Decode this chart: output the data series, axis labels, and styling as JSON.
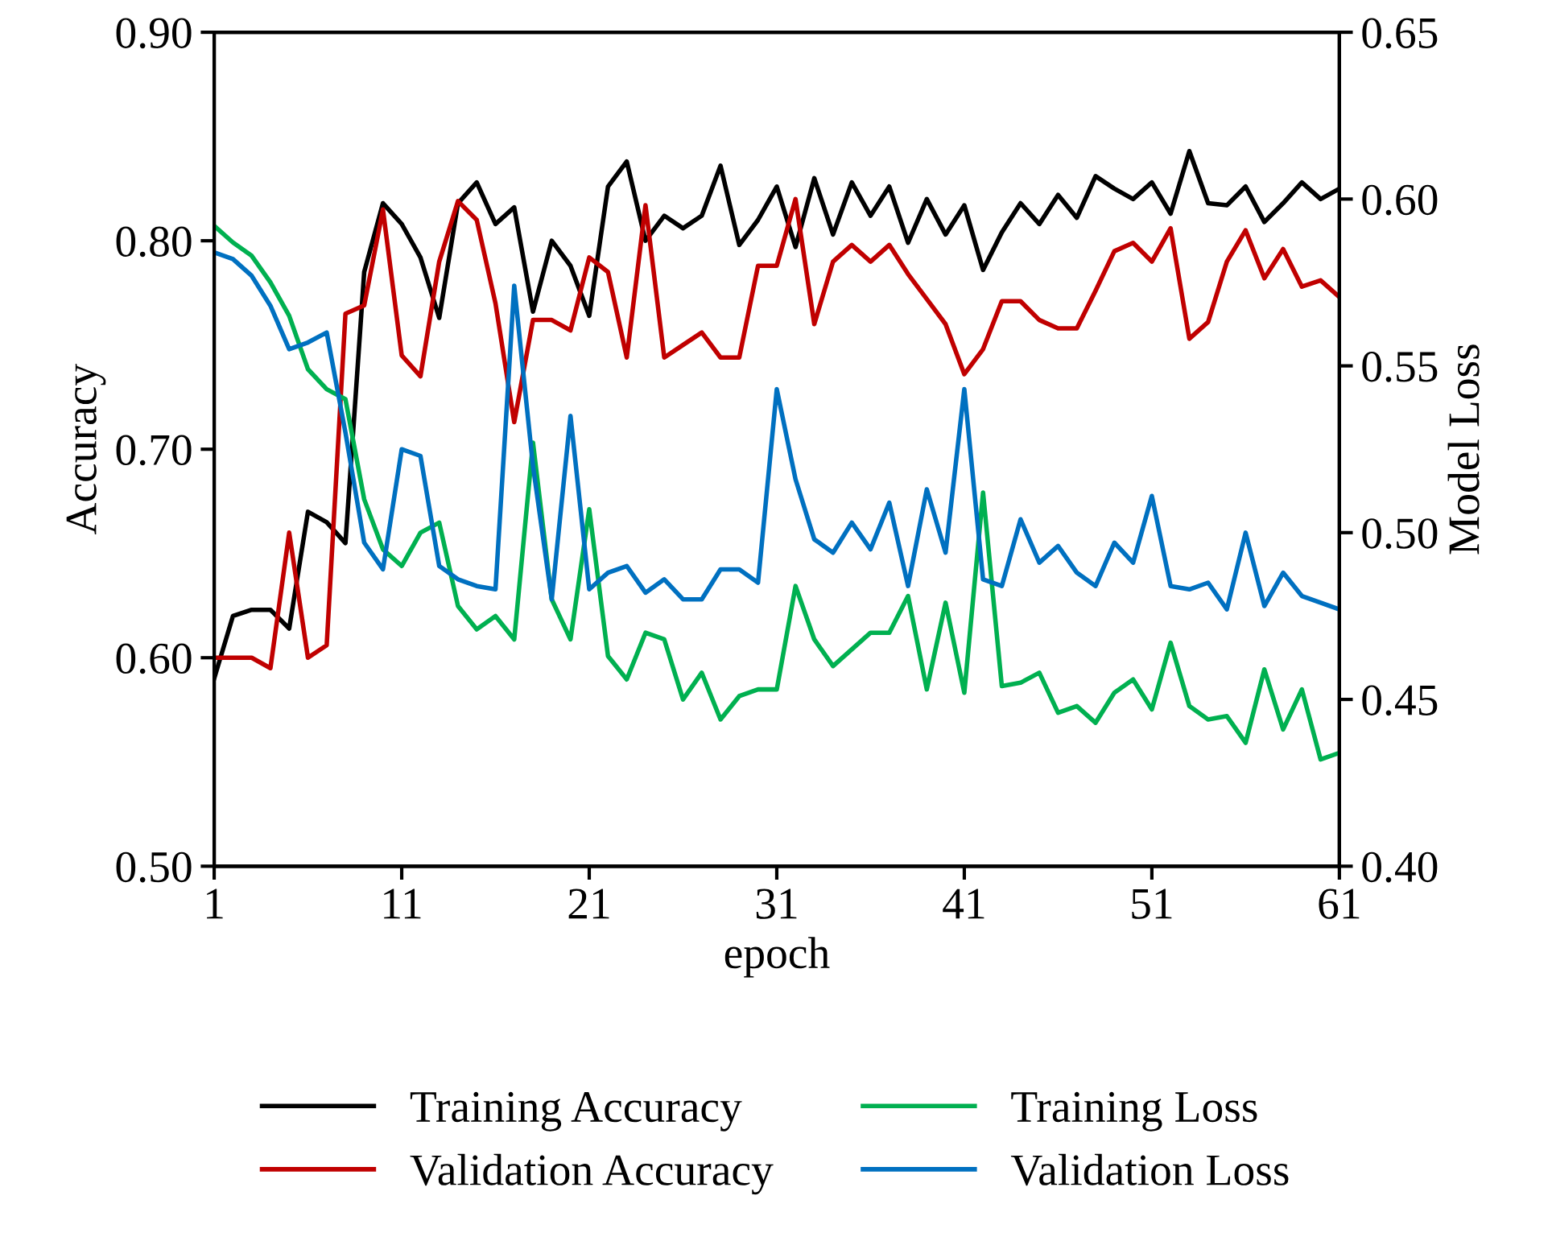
{
  "chart_data": {
    "type": "line",
    "xlabel": "epoch",
    "ylabel": "Accuracy",
    "y2label": "Model Loss",
    "x": [
      1,
      2,
      3,
      4,
      5,
      6,
      7,
      8,
      9,
      10,
      11,
      12,
      13,
      14,
      15,
      16,
      17,
      18,
      19,
      20,
      21,
      22,
      23,
      24,
      25,
      26,
      27,
      28,
      29,
      30,
      31,
      32,
      33,
      34,
      35,
      36,
      37,
      38,
      39,
      40,
      41,
      42,
      43,
      44,
      45,
      46,
      47,
      48,
      49,
      50,
      51,
      52,
      53,
      54,
      55,
      56,
      57,
      58,
      59,
      60,
      61
    ],
    "xlim": [
      1,
      61
    ],
    "xticks": [
      1,
      11,
      21,
      31,
      41,
      51,
      61
    ],
    "ylim": [
      0.5,
      0.9
    ],
    "yticks": [
      {
        "value": 0.5,
        "label": "0.50"
      },
      {
        "value": 0.6,
        "label": "0.60"
      },
      {
        "value": 0.7,
        "label": "0.70"
      },
      {
        "value": 0.8,
        "label": "0.80"
      },
      {
        "value": 0.9,
        "label": "0.90"
      }
    ],
    "y2lim": [
      0.4,
      0.65
    ],
    "y2ticks": [
      {
        "value": 0.4,
        "label": "0.40"
      },
      {
        "value": 0.45,
        "label": "0.45"
      },
      {
        "value": 0.5,
        "label": "0.50"
      },
      {
        "value": 0.55,
        "label": "0.55"
      },
      {
        "value": 0.6,
        "label": "0.60"
      },
      {
        "value": 0.65,
        "label": "0.65"
      }
    ],
    "grid": false,
    "legend": "bottom",
    "marker": "none",
    "line_style": "solid",
    "series": [
      {
        "name": "Training Accuracy",
        "color": "#000000",
        "values": [
          0.59,
          0.62,
          0.623,
          0.623,
          0.614,
          0.67,
          0.665,
          0.655,
          0.785,
          0.818,
          0.808,
          0.792,
          0.763,
          0.818,
          0.828,
          0.808,
          0.816,
          0.766,
          0.8,
          0.788,
          0.764,
          0.826,
          0.838,
          0.8,
          0.812,
          0.806,
          0.812,
          0.836,
          0.798,
          0.81,
          0.826,
          0.797,
          0.83,
          0.803,
          0.828,
          0.812,
          0.826,
          0.799,
          0.82,
          0.803,
          0.817,
          0.786,
          0.804,
          0.818,
          0.808,
          0.822,
          0.811,
          0.831,
          0.825,
          0.82,
          0.828,
          0.813,
          0.843,
          0.818,
          0.817,
          0.826,
          0.809,
          0.818,
          0.828,
          0.82,
          0.825
        ]
      },
      {
        "name": "Validation Accuracy",
        "color": "#c00000",
        "values": [
          0.6,
          0.6,
          0.6,
          0.595,
          0.66,
          0.6,
          0.606,
          0.765,
          0.769,
          0.815,
          0.745,
          0.735,
          0.79,
          0.819,
          0.81,
          0.77,
          0.713,
          0.762,
          0.762,
          0.757,
          0.792,
          0.785,
          0.744,
          0.817,
          0.744,
          0.75,
          0.756,
          0.744,
          0.744,
          0.788,
          0.788,
          0.82,
          0.76,
          0.79,
          0.798,
          0.79,
          0.798,
          0.784,
          0.772,
          0.76,
          0.736,
          0.748,
          0.771,
          0.771,
          0.762,
          0.758,
          0.758,
          0.776,
          0.795,
          0.799,
          0.79,
          0.806,
          0.753,
          0.761,
          0.79,
          0.805,
          0.782,
          0.796,
          0.778,
          0.781,
          0.773
        ]
      },
      {
        "name": "Training Loss",
        "color": "#00b050",
        "axis": "y2",
        "values": [
          0.592,
          0.587,
          0.583,
          0.575,
          0.565,
          0.549,
          0.543,
          0.54,
          0.51,
          0.495,
          0.49,
          0.5,
          0.503,
          0.478,
          0.471,
          0.475,
          0.468,
          0.527,
          0.48,
          0.468,
          0.507,
          0.463,
          0.456,
          0.47,
          0.468,
          0.45,
          0.458,
          0.444,
          0.451,
          0.453,
          0.453,
          0.484,
          0.468,
          0.46,
          0.465,
          0.47,
          0.47,
          0.481,
          0.453,
          0.479,
          0.452,
          0.512,
          0.454,
          0.455,
          0.458,
          0.446,
          0.448,
          0.443,
          0.452,
          0.456,
          0.447,
          0.467,
          0.448,
          0.444,
          0.445,
          0.437,
          0.459,
          0.441,
          0.453,
          0.432,
          0.434
        ]
      },
      {
        "name": "Validation Loss",
        "color": "#0070c0",
        "axis": "y2",
        "values": [
          0.584,
          0.582,
          0.577,
          0.568,
          0.555,
          0.557,
          0.56,
          0.53,
          0.497,
          0.489,
          0.525,
          0.523,
          0.49,
          0.486,
          0.484,
          0.483,
          0.574,
          0.52,
          0.48,
          0.535,
          0.483,
          0.488,
          0.49,
          0.482,
          0.486,
          0.48,
          0.48,
          0.489,
          0.489,
          0.485,
          0.543,
          0.516,
          0.498,
          0.494,
          0.503,
          0.495,
          0.509,
          0.484,
          0.513,
          0.494,
          0.543,
          0.486,
          0.484,
          0.504,
          0.491,
          0.496,
          0.488,
          0.484,
          0.497,
          0.491,
          0.511,
          0.484,
          0.483,
          0.485,
          0.477,
          0.5,
          0.478,
          0.488,
          0.481,
          0.479,
          0.477
        ]
      }
    ]
  }
}
